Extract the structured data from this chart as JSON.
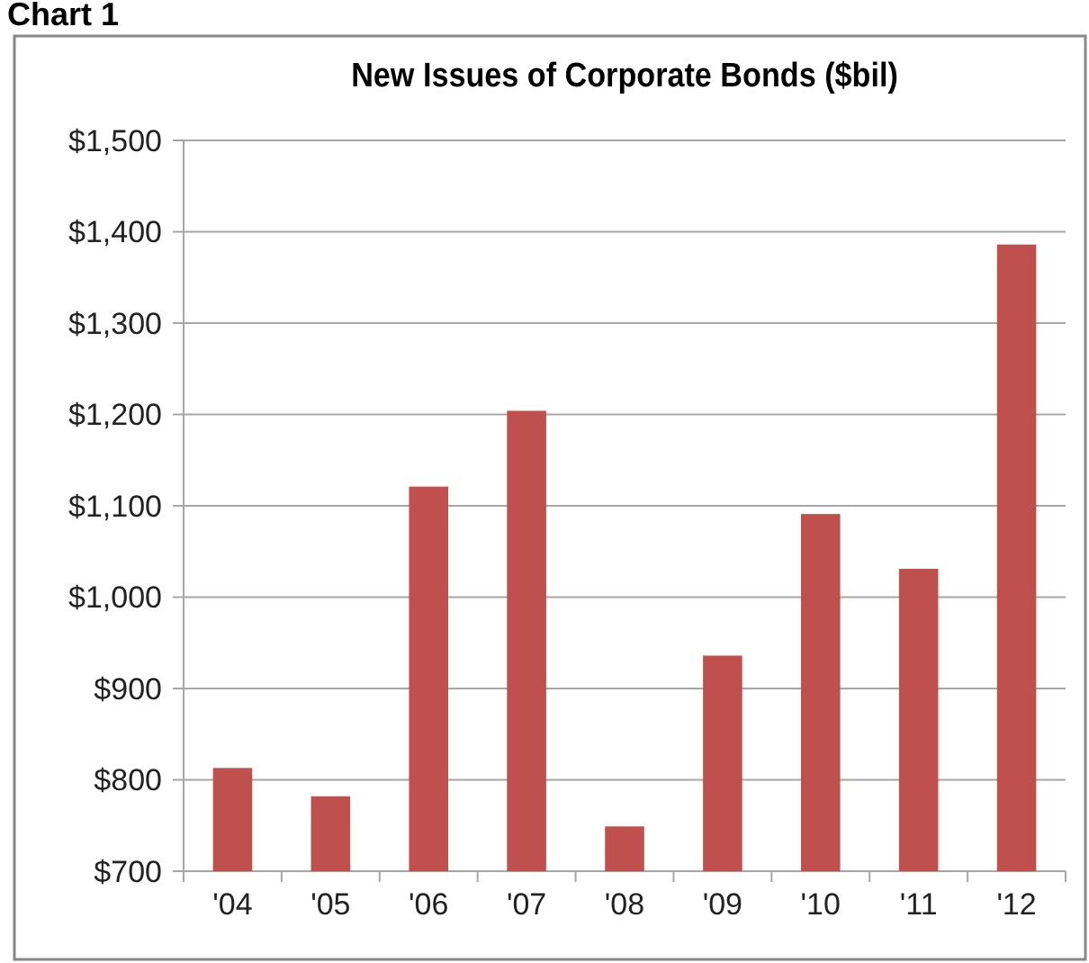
{
  "chart_data": {
    "type": "bar",
    "title": "New Issues of Corporate Bonds ($bil)",
    "annotations": [
      "Chart 1"
    ],
    "categories": [
      "'04",
      "'05",
      "'06",
      "'07",
      "'08",
      "'09",
      "'10",
      "'11",
      "'12"
    ],
    "values": [
      813,
      782,
      1121,
      1204,
      749,
      936,
      1091,
      1031,
      1386
    ],
    "color": "#c0504d",
    "ylim": [
      700,
      1500
    ],
    "yticks": [
      {
        "value": 700,
        "label": "$700"
      },
      {
        "value": 800,
        "label": "$800"
      },
      {
        "value": 900,
        "label": "$900"
      },
      {
        "value": 1000,
        "label": "$1,000"
      },
      {
        "value": 1100,
        "label": "$1,100"
      },
      {
        "value": 1200,
        "label": "$1,200"
      },
      {
        "value": 1300,
        "label": "$1,300"
      },
      {
        "value": 1400,
        "label": "$1,400"
      },
      {
        "value": 1500,
        "label": "$1,500"
      }
    ],
    "grid": "y"
  }
}
